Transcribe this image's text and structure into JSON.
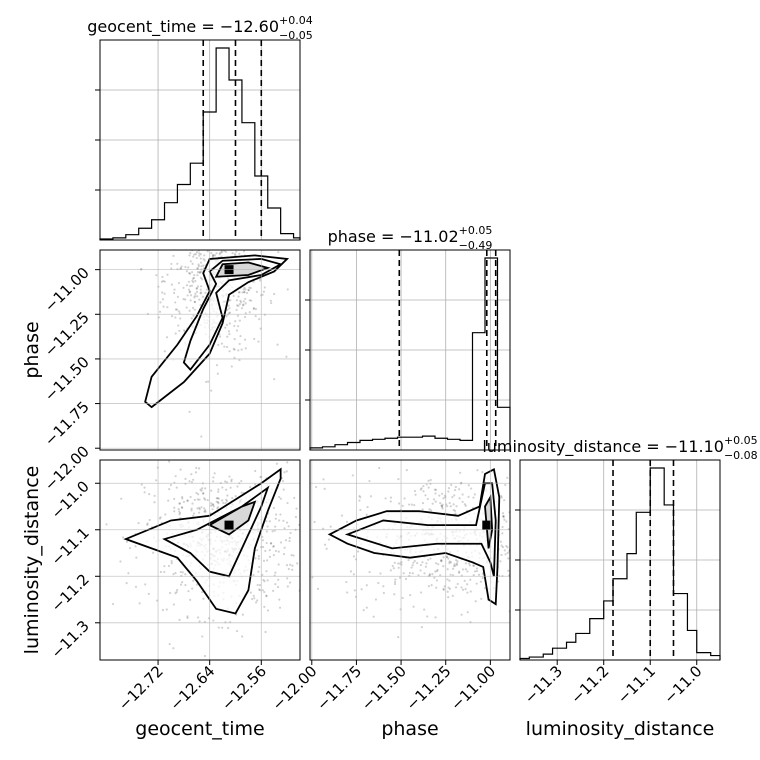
{
  "chart_data": {
    "type": "corner",
    "parameters": [
      "geocent_time",
      "phase",
      "luminosity_distance"
    ],
    "titles": [
      {
        "name": "geocent_time",
        "median": "−12.60",
        "plus": "+0.04",
        "minus": "−0.05"
      },
      {
        "name": "phase",
        "median": "−11.02",
        "plus": "+0.05",
        "minus": "−0.49"
      },
      {
        "name": "luminosity_distance",
        "median": "−11.10",
        "plus": "+0.05",
        "minus": "−0.08"
      }
    ],
    "axis_labels": {
      "x": [
        "geocent_time",
        "phase",
        "luminosity_distance"
      ],
      "y": [
        "phase",
        "luminosity_distance"
      ]
    },
    "ranges": {
      "geocent_time": [
        -12.81,
        -12.5
      ],
      "phase": [
        -12.01,
        -10.89
      ],
      "luminosity_distance": [
        -11.38,
        -10.95
      ]
    },
    "ticks": {
      "geocent_time": [
        -12.72,
        -12.64,
        -12.56
      ],
      "phase": [
        -12.0,
        -11.75,
        -11.5,
        -11.25,
        -11.0
      ],
      "luminosity_distance": [
        -11.3,
        -11.2,
        -11.1,
        -11.0
      ]
    },
    "tick_labels": {
      "geocent_time": [
        "−12.72",
        "−12.64",
        "−12.56"
      ],
      "phase": [
        "−12.00",
        "−11.75",
        "−11.50",
        "−11.25",
        "−11.00"
      ],
      "luminosity_distance": [
        "−11.3",
        "−11.2",
        "−11.1",
        "−11.0"
      ]
    },
    "histograms": [
      {
        "param": "geocent_time",
        "bin_edges": [
          -12.81,
          -12.79,
          -12.77,
          -12.75,
          -12.73,
          -12.71,
          -12.69,
          -12.67,
          -12.65,
          -12.63,
          -12.61,
          -12.59,
          -12.57,
          -12.55,
          -12.53,
          -12.51,
          -12.5
        ],
        "counts": [
          1,
          2,
          5,
          11,
          19,
          35,
          52,
          72,
          120,
          180,
          150,
          110,
          60,
          30,
          6,
          2
        ],
        "quantiles": [
          -12.65,
          -12.6,
          -12.56
        ]
      },
      {
        "param": "phase",
        "bin_edges": [
          -12.01,
          -11.94,
          -11.87,
          -11.8,
          -11.73,
          -11.66,
          -11.59,
          -11.52,
          -11.45,
          -11.38,
          -11.31,
          -11.24,
          -11.17,
          -11.1,
          -11.03,
          -10.96,
          -10.89
        ],
        "counts": [
          2,
          3,
          5,
          7,
          9,
          10,
          11,
          12,
          12,
          13,
          11,
          10,
          9,
          110,
          180,
          40
        ],
        "quantiles": [
          -11.51,
          -11.02,
          -10.97
        ]
      },
      {
        "param": "luminosity_distance",
        "bin_edges": [
          -11.38,
          -11.36,
          -11.33,
          -11.31,
          -11.28,
          -11.26,
          -11.23,
          -11.2,
          -11.18,
          -11.15,
          -11.13,
          -11.1,
          -11.07,
          -11.05,
          -11.02,
          -11.0,
          -10.97,
          -10.95
        ],
        "counts": [
          1,
          2,
          4,
          8,
          12,
          18,
          28,
          40,
          55,
          72,
          100,
          130,
          105,
          45,
          20,
          5,
          3
        ],
        "quantiles": [
          -11.18,
          -11.1,
          -11.05
        ]
      }
    ],
    "contours_2d": [
      {
        "x_param": "geocent_time",
        "y_param": "phase",
        "levels": [
          [
            [
              -12.73,
              -11.77
            ],
            [
              -12.68,
              -11.63
            ],
            [
              -12.64,
              -11.47
            ],
            [
              -12.62,
              -11.3
            ],
            [
              -12.61,
              -11.14
            ],
            [
              -12.58,
              -11.07
            ],
            [
              -12.54,
              -11.01
            ],
            [
              -12.52,
              -10.94
            ],
            [
              -12.57,
              -10.92
            ],
            [
              -12.64,
              -10.94
            ],
            [
              -12.65,
              -11.02
            ],
            [
              -12.64,
              -11.12
            ],
            [
              -12.66,
              -11.26
            ],
            [
              -12.69,
              -11.42
            ],
            [
              -12.73,
              -11.6
            ],
            [
              -12.74,
              -11.74
            ],
            [
              -12.73,
              -11.77
            ]
          ],
          [
            [
              -12.67,
              -11.56
            ],
            [
              -12.64,
              -11.42
            ],
            [
              -12.62,
              -11.27
            ],
            [
              -12.63,
              -11.13
            ],
            [
              -12.61,
              -11.06
            ],
            [
              -12.56,
              -11.03
            ],
            [
              -12.53,
              -10.97
            ],
            [
              -12.56,
              -10.94
            ],
            [
              -12.62,
              -10.95
            ],
            [
              -12.64,
              -11.01
            ],
            [
              -12.63,
              -11.08
            ],
            [
              -12.65,
              -11.22
            ],
            [
              -12.67,
              -11.4
            ],
            [
              -12.68,
              -11.52
            ],
            [
              -12.67,
              -11.56
            ]
          ],
          [
            [
              -12.63,
              -11.04
            ],
            [
              -12.58,
              -11.03
            ],
            [
              -12.55,
              -10.99
            ],
            [
              -12.58,
              -10.96
            ],
            [
              -12.62,
              -10.97
            ],
            [
              -12.63,
              -11.04
            ]
          ]
        ],
        "scatter_center": [
          -12.63,
          -11.05
        ],
        "scatter_spread": [
          0.04,
          0.22
        ],
        "peak": [
          -12.61,
          -11.0
        ]
      },
      {
        "x_param": "geocent_time",
        "y_param": "luminosity_distance",
        "levels": [
          [
            [
              -12.77,
              -11.12
            ],
            [
              -12.7,
              -11.08
            ],
            [
              -12.64,
              -11.07
            ],
            [
              -12.56,
              -11.0
            ],
            [
              -12.53,
              -10.97
            ],
            [
              -12.53,
              -10.99
            ],
            [
              -12.55,
              -11.06
            ],
            [
              -12.57,
              -11.14
            ],
            [
              -12.58,
              -11.23
            ],
            [
              -12.6,
              -11.28
            ],
            [
              -12.63,
              -11.27
            ],
            [
              -12.66,
              -11.21
            ],
            [
              -12.69,
              -11.16
            ],
            [
              -12.77,
              -11.12
            ]
          ],
          [
            [
              -12.71,
              -11.12
            ],
            [
              -12.66,
              -11.1
            ],
            [
              -12.59,
              -11.05
            ],
            [
              -12.55,
              -11.01
            ],
            [
              -12.56,
              -11.05
            ],
            [
              -12.59,
              -11.14
            ],
            [
              -12.61,
              -11.2
            ],
            [
              -12.64,
              -11.19
            ],
            [
              -12.67,
              -11.15
            ],
            [
              -12.71,
              -11.12
            ]
          ],
          [
            [
              -12.64,
              -11.09
            ],
            [
              -12.59,
              -11.05
            ],
            [
              -12.57,
              -11.04
            ],
            [
              -12.58,
              -11.08
            ],
            [
              -12.61,
              -11.11
            ],
            [
              -12.64,
              -11.09
            ]
          ]
        ],
        "scatter_center": [
          -12.62,
          -11.12
        ],
        "scatter_spread": [
          0.06,
          0.08
        ],
        "peak": [
          -12.61,
          -11.09
        ]
      },
      {
        "x_param": "phase",
        "y_param": "luminosity_distance",
        "levels": [
          [
            [
              -11.9,
              -11.11
            ],
            [
              -11.75,
              -11.08
            ],
            [
              -11.58,
              -11.06
            ],
            [
              -11.4,
              -11.06
            ],
            [
              -11.18,
              -11.07
            ],
            [
              -11.06,
              -11.05
            ],
            [
              -11.03,
              -10.98
            ],
            [
              -10.98,
              -10.97
            ],
            [
              -10.95,
              -11.03
            ],
            [
              -10.96,
              -11.18
            ],
            [
              -10.97,
              -11.26
            ],
            [
              -11.01,
              -11.25
            ],
            [
              -11.04,
              -11.18
            ],
            [
              -11.1,
              -11.17
            ],
            [
              -11.25,
              -11.15
            ],
            [
              -11.45,
              -11.16
            ],
            [
              -11.65,
              -11.15
            ],
            [
              -11.8,
              -11.13
            ],
            [
              -11.9,
              -11.11
            ]
          ],
          [
            [
              -11.8,
              -11.11
            ],
            [
              -11.6,
              -11.08
            ],
            [
              -11.35,
              -11.09
            ],
            [
              -11.08,
              -11.09
            ],
            [
              -11.03,
              -11.0
            ],
            [
              -10.99,
              -11.0
            ],
            [
              -10.97,
              -11.08
            ],
            [
              -10.98,
              -11.2
            ],
            [
              -11.0,
              -11.17
            ],
            [
              -11.05,
              -11.13
            ],
            [
              -11.3,
              -11.13
            ],
            [
              -11.55,
              -11.14
            ],
            [
              -11.8,
              -11.11
            ]
          ],
          [
            [
              -11.03,
              -11.05
            ],
            [
              -11.0,
              -11.03
            ],
            [
              -10.99,
              -11.1
            ],
            [
              -11.01,
              -11.14
            ],
            [
              -11.03,
              -11.05
            ]
          ]
        ],
        "scatter_center": [
          -11.2,
          -11.12
        ],
        "scatter_spread": [
          0.3,
          0.07
        ],
        "peak": [
          -11.02,
          -11.09
        ]
      }
    ]
  }
}
